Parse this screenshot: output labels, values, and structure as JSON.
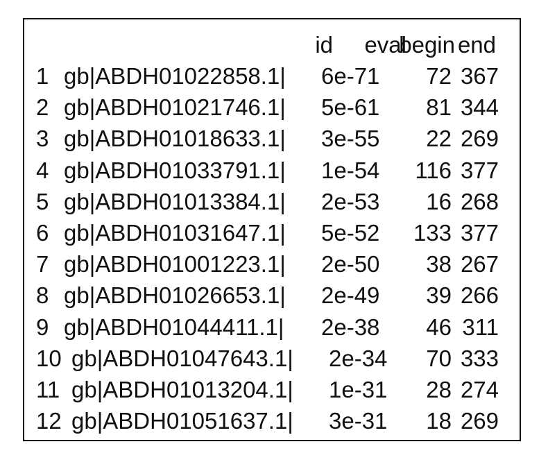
{
  "table": {
    "headers": {
      "id": "id",
      "eval": "eval",
      "begin": "begin",
      "end": "end"
    },
    "rows": [
      {
        "num": "1",
        "id": "gb|ABDH01022858.1|",
        "eval": "6e-71",
        "begin": "72",
        "end": "367"
      },
      {
        "num": "2",
        "id": "gb|ABDH01021746.1|",
        "eval": "5e-61",
        "begin": "81",
        "end": "344"
      },
      {
        "num": "3",
        "id": "gb|ABDH01018633.1|",
        "eval": "3e-55",
        "begin": "22",
        "end": "269"
      },
      {
        "num": "4",
        "id": "gb|ABDH01033791.1|",
        "eval": "1e-54",
        "begin": "116",
        "end": "377"
      },
      {
        "num": "5",
        "id": "gb|ABDH01013384.1|",
        "eval": "2e-53",
        "begin": "16",
        "end": "268"
      },
      {
        "num": "6",
        "id": "gb|ABDH01031647.1|",
        "eval": "5e-52",
        "begin": "133",
        "end": "377"
      },
      {
        "num": "7",
        "id": "gb|ABDH01001223.1|",
        "eval": "2e-50",
        "begin": "38",
        "end": "267"
      },
      {
        "num": "8",
        "id": "gb|ABDH01026653.1|",
        "eval": "2e-49",
        "begin": "39",
        "end": "266"
      },
      {
        "num": "9",
        "id": "gb|ABDH01044411.1|",
        "eval": "2e-38",
        "begin": "46",
        "end": "311"
      },
      {
        "num": "10",
        "id": "gb|ABDH01047643.1|",
        "eval": "2e-34",
        "begin": "70",
        "end": "333"
      },
      {
        "num": "11",
        "id": "gb|ABDH01013204.1|",
        "eval": "1e-31",
        "begin": "28",
        "end": "274"
      },
      {
        "num": "12",
        "id": "gb|ABDH01051637.1|",
        "eval": "3e-31",
        "begin": "18",
        "end": "269"
      }
    ]
  }
}
